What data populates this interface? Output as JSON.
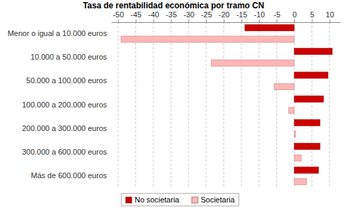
{
  "chart_data": {
    "type": "bar",
    "orientation": "horizontal",
    "title": "Tasa de rentabilidad económica por tramo CN",
    "categories": [
      "Menor o igual a 10.000 euros",
      "10.000 a 50.000 euros",
      "50.000 a 100.000 euros",
      "100.000 a 200.000 euros",
      "200.000 a 300.000 euros",
      "300.000 a 600.000 euros",
      "Más de 600.000 euros"
    ],
    "series": [
      {
        "name": "No societaria",
        "color": "#cc0000",
        "values": [
          -14,
          10.8,
          9.6,
          8.3,
          7.3,
          7.3,
          6.9
        ]
      },
      {
        "name": "Societaria",
        "color": "#ffb6b6",
        "values": [
          -49.2,
          -23.6,
          -5.7,
          -1.6,
          0.4,
          2,
          3.5
        ]
      }
    ],
    "xlim": [
      -52,
      13
    ],
    "xticks": [
      -50,
      -45,
      -40,
      -35,
      -30,
      -25,
      -20,
      -15,
      -10,
      -5,
      0,
      5,
      10
    ],
    "grid": true,
    "legend": "bottom"
  }
}
